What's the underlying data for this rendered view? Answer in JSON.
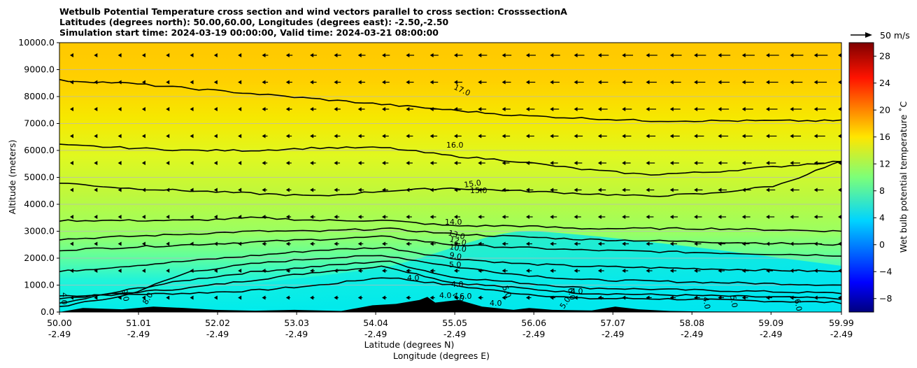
{
  "chart_data": {
    "type": "heatmap",
    "title_lines": [
      "Wetbulb Potential Temperature cross section and wind vectors parallel to cross section: CrosssectionA",
      "Latitudes (degrees north): 50.00,60.00, Longitudes (degrees east): -2.50,-2.50",
      "Simulation start time: 2024-03-19 00:00:00, Valid time: 2024-03-21 08:00:00"
    ],
    "ylabel": "Altitude (meters)",
    "xlabel_lat": "Latitude (degrees N)",
    "xlabel_lon": "Longitude (degrees E)",
    "xlim": [
      50.0,
      59.99
    ],
    "ylim": [
      0,
      10000
    ],
    "y_ticks": [
      "0.0",
      "1000.0",
      "2000.0",
      "3000.0",
      "4000.0",
      "5000.0",
      "6000.0",
      "7000.0",
      "8000.0",
      "9000.0",
      "10000.0"
    ],
    "y_tick_values": [
      0,
      1000,
      2000,
      3000,
      4000,
      5000,
      6000,
      7000,
      8000,
      9000,
      10000
    ],
    "x_ticks_lat": [
      "50.00",
      "51.01",
      "52.02",
      "53.03",
      "54.04",
      "55.05",
      "56.06",
      "57.07",
      "58.08",
      "59.09",
      "59.99"
    ],
    "x_tick_values": [
      50.0,
      51.01,
      52.02,
      53.03,
      54.04,
      55.05,
      56.06,
      57.07,
      58.08,
      59.09,
      59.99
    ],
    "x_ticks_lon": [
      "-2.49",
      "-2.49",
      "-2.49",
      "-2.49",
      "-2.49",
      "-2.49",
      "-2.49",
      "-2.49",
      "-2.49",
      "-2.49",
      "-2.49"
    ],
    "grid": "horizontal",
    "colorbar": {
      "label": "Wet bulb potential temperature ˚C",
      "range": [
        -10,
        30
      ],
      "ticks": [
        "−8",
        "−4",
        "0",
        "4",
        "8",
        "12",
        "16",
        "20",
        "24",
        "28"
      ],
      "tick_values": [
        -8,
        -4,
        0,
        4,
        8,
        12,
        16,
        20,
        24,
        28
      ]
    },
    "wind_key": "50 m/s",
    "contours": [
      {
        "level": "4.0",
        "alt": [
          600,
          650,
          700,
          800,
          1000,
          1300,
          1000,
          700,
          500,
          500,
          450,
          400,
          350
        ]
      },
      {
        "level": "5.0",
        "alt": [
          500,
          700,
          900,
          1200,
          1500,
          1700,
          1100,
          900,
          700,
          650,
          600,
          550,
          500
        ]
      },
      {
        "level": "6.0",
        "alt": [
          300,
          800,
          1200,
          1500,
          1700,
          1900,
          1300,
          1100,
          900,
          850,
          800,
          750,
          700
        ]
      },
      {
        "level": "8.0",
        "alt": [
          200,
          600,
          1500,
          1800,
          2000,
          2100,
          1700,
          1400,
          1200,
          1150,
          1100,
          1050,
          1000
        ]
      },
      {
        "level": "10.0",
        "alt": [
          1500,
          1700,
          1900,
          2100,
          2300,
          2400,
          2000,
          1800,
          1700,
          1650,
          1600,
          1550,
          1500
        ]
      },
      {
        "level": "12.0",
        "alt": [
          2300,
          2400,
          2500,
          2600,
          2700,
          2800,
          2500,
          2400,
          2300,
          2250,
          2200,
          2150,
          2100
        ]
      },
      {
        "level": "13.0",
        "alt": [
          2700,
          2800,
          2900,
          3000,
          3000,
          3100,
          2900,
          2800,
          2700,
          2650,
          2600,
          2550,
          2500
        ]
      },
      {
        "level": "14.0",
        "alt": [
          3400,
          3400,
          3400,
          3500,
          3400,
          3400,
          3200,
          3200,
          3100,
          3100,
          3100,
          3050,
          3000
        ]
      },
      {
        "level": "15.0",
        "alt": [
          4800,
          4600,
          4500,
          4400,
          4300,
          4500,
          4600,
          4500,
          4400,
          4300,
          4400,
          4700,
          5600
        ]
      },
      {
        "level": "16.0",
        "alt": [
          6200,
          6100,
          6000,
          6000,
          6100,
          6100,
          5800,
          5600,
          5300,
          5100,
          5200,
          5400,
          5600
        ]
      },
      {
        "level": "17.0",
        "alt": [
          8600,
          8500,
          8300,
          8100,
          7900,
          7700,
          7500,
          7300,
          7200,
          7100,
          7100,
          7100,
          7100
        ]
      }
    ],
    "contour_x": [
      50.0,
      50.83,
      51.67,
      52.5,
      53.33,
      54.17,
      55.0,
      55.83,
      56.67,
      57.5,
      58.33,
      59.17,
      59.99
    ],
    "terrain": [
      [
        50.0,
        0
      ],
      [
        50.3,
        150
      ],
      [
        50.8,
        100
      ],
      [
        51.2,
        200
      ],
      [
        51.6,
        150
      ],
      [
        52.0,
        80
      ],
      [
        52.5,
        50
      ],
      [
        53.0,
        80
      ],
      [
        53.6,
        40
      ],
      [
        54.0,
        250
      ],
      [
        54.3,
        300
      ],
      [
        54.6,
        450
      ],
      [
        54.7,
        560
      ],
      [
        54.8,
        350
      ],
      [
        55.1,
        450
      ],
      [
        55.4,
        200
      ],
      [
        55.8,
        80
      ],
      [
        56.0,
        150
      ],
      [
        56.3,
        80
      ],
      [
        56.8,
        60
      ],
      [
        57.1,
        200
      ],
      [
        57.4,
        100
      ],
      [
        57.8,
        40
      ],
      [
        58.2,
        20
      ],
      [
        59.99,
        0
      ]
    ],
    "contour_labels": [
      {
        "text": "17.0",
        "x": 55.9,
        "alt": 8100
      },
      {
        "text": "16.0",
        "x": 55.9,
        "alt": 6000
      },
      {
        "text": "15.0",
        "x": 55.9,
        "alt": 4800
      },
      {
        "text": "15.0",
        "x": 55.9,
        "alt": 4400
      },
      {
        "text": "14.0",
        "x": 55.9,
        "alt": 3200
      },
      {
        "text": "13.0",
        "x": 55.9,
        "alt": 2800
      },
      {
        "text": "12.0",
        "x": 55.9,
        "alt": 2500
      },
      {
        "text": "10.0",
        "x": 55.9,
        "alt": 2200
      },
      {
        "text": "9.0",
        "x": 55.9,
        "alt": 1900
      },
      {
        "text": "5.0",
        "x": 55.9,
        "alt": 1600
      },
      {
        "text": "4.0",
        "x": 55.9,
        "alt": 1400
      },
      {
        "text": "4.0",
        "x": 55.9,
        "alt": 1050
      },
      {
        "text": "4.0",
        "x": 55.9,
        "alt": 700
      },
      {
        "text": "6.0",
        "x": 55.9,
        "alt": 520
      },
      {
        "text": "5.0",
        "x": 55.9,
        "alt": 450
      },
      {
        "text": "4.0",
        "x": 55.9,
        "alt": 300
      },
      {
        "text": "9.0",
        "x": 55.9,
        "alt": 700
      },
      {
        "text": "8.0",
        "x": 55.9,
        "alt": 800
      },
      {
        "text": "5.0",
        "x": 55.9,
        "alt": 400
      },
      {
        "text": "6.0",
        "x": 55.9,
        "alt": 900
      },
      {
        "text": "4.0",
        "x": 55.9,
        "alt": 750
      },
      {
        "text": "5.0",
        "x": 55.9,
        "alt": 500
      },
      {
        "text": "6.0",
        "x": 55.9,
        "alt": 300
      },
      {
        "text": "4.0",
        "x": 55.9,
        "alt": 500
      },
      {
        "text": "4.0",
        "x": 55.9,
        "alt": 550
      },
      {
        "text": "4.0",
        "x": 55.9,
        "alt": 450
      }
    ]
  }
}
